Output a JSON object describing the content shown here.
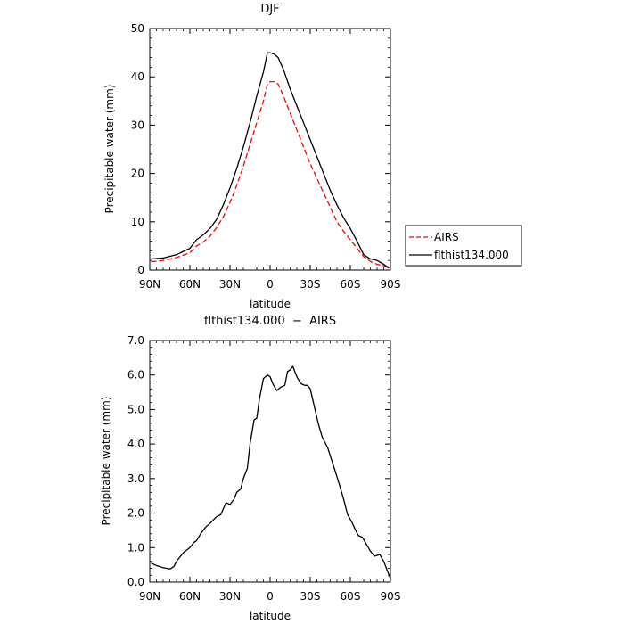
{
  "chart_data": [
    {
      "type": "line",
      "title": "DJF",
      "xlabel": "latitude",
      "ylabel": "Precipitable water (mm)",
      "xlim": [
        90,
        -90
      ],
      "ylim": [
        0,
        50
      ],
      "xticks": [
        {
          "value": 90,
          "label": "90N"
        },
        {
          "value": 60,
          "label": "60N"
        },
        {
          "value": 30,
          "label": "30N"
        },
        {
          "value": 0,
          "label": "0"
        },
        {
          "value": -30,
          "label": "30S"
        },
        {
          "value": -60,
          "label": "60S"
        },
        {
          "value": -90,
          "label": "90S"
        }
      ],
      "yticks": [
        {
          "value": 0,
          "label": "0"
        },
        {
          "value": 10,
          "label": "10"
        },
        {
          "value": 20,
          "label": "20"
        },
        {
          "value": 30,
          "label": "30"
        },
        {
          "value": 40,
          "label": "40"
        },
        {
          "value": 50,
          "label": "50"
        }
      ],
      "legend_position": "right",
      "series": [
        {
          "name": "AIRS",
          "color": "#ff0000",
          "dash": "dashed",
          "x": [
            89,
            80,
            70,
            60,
            55,
            50,
            45,
            40,
            35,
            30,
            25,
            20,
            15,
            10,
            5,
            2,
            0,
            -3,
            -6,
            -10,
            -15,
            -20,
            -25,
            -30,
            -35,
            -40,
            -45,
            -50,
            -55,
            -60,
            -65,
            -70,
            -75,
            -80,
            -85,
            -89
          ],
          "y": [
            1.7,
            2.0,
            2.6,
            3.6,
            5.0,
            5.8,
            7.0,
            8.8,
            11.0,
            14.0,
            17.5,
            21.5,
            26.0,
            30.5,
            35.0,
            38.5,
            39.0,
            39.0,
            38.5,
            36.0,
            32.5,
            29.0,
            25.5,
            22.0,
            19.0,
            16.0,
            13.0,
            10.0,
            8.0,
            6.3,
            4.5,
            2.8,
            1.8,
            1.2,
            0.9,
            0.4
          ]
        },
        {
          "name": "flthist134.000",
          "color": "#000000",
          "dash": "solid",
          "x": [
            89,
            80,
            70,
            60,
            55,
            50,
            45,
            40,
            35,
            30,
            25,
            20,
            15,
            10,
            5,
            2,
            0,
            -3,
            -6,
            -10,
            -15,
            -20,
            -25,
            -30,
            -35,
            -40,
            -45,
            -50,
            -55,
            -60,
            -65,
            -70,
            -75,
            -80,
            -85,
            -89
          ],
          "y": [
            2.3,
            2.5,
            3.2,
            4.5,
            6.3,
            7.3,
            8.6,
            10.5,
            13.5,
            17.0,
            21.0,
            25.5,
            30.5,
            36.0,
            41.0,
            45.0,
            45.0,
            44.7,
            44.0,
            41.5,
            37.5,
            34.0,
            30.5,
            27.0,
            23.5,
            20.0,
            16.5,
            13.5,
            10.8,
            8.6,
            6.0,
            3.2,
            2.3,
            2.0,
            1.2,
            0.4
          ]
        }
      ]
    },
    {
      "type": "line",
      "title": "flthist134.000  −  AIRS",
      "xlabel": "latitude",
      "ylabel": "Precipitable water (mm)",
      "xlim": [
        90,
        -90
      ],
      "ylim": [
        0,
        7
      ],
      "xticks": [
        {
          "value": 90,
          "label": "90N"
        },
        {
          "value": 60,
          "label": "60N"
        },
        {
          "value": 30,
          "label": "30N"
        },
        {
          "value": 0,
          "label": "0"
        },
        {
          "value": -30,
          "label": "30S"
        },
        {
          "value": -60,
          "label": "60S"
        },
        {
          "value": -90,
          "label": "90S"
        }
      ],
      "yticks": [
        {
          "value": 0,
          "label": "0.0"
        },
        {
          "value": 1,
          "label": "1.0"
        },
        {
          "value": 2,
          "label": "2.0"
        },
        {
          "value": 3,
          "label": "3.0"
        },
        {
          "value": 4,
          "label": "4.0"
        },
        {
          "value": 5,
          "label": "5.0"
        },
        {
          "value": 6,
          "label": "6.0"
        },
        {
          "value": 7,
          "label": "7.0"
        }
      ],
      "series": [
        {
          "name": "",
          "color": "#000000",
          "dash": "solid",
          "x": [
            89,
            85,
            80,
            75,
            72,
            70,
            65,
            60,
            57,
            55,
            52,
            48,
            45,
            40,
            37,
            33,
            30,
            27,
            25,
            22,
            20,
            17,
            15,
            12,
            10,
            8,
            5,
            2,
            0,
            -2,
            -5,
            -8,
            -11,
            -13,
            -15,
            -17,
            -20,
            -23,
            -26,
            -28,
            -30,
            -33,
            -36,
            -39,
            -43,
            -48,
            -52,
            -55,
            -58,
            -61,
            -64,
            -66,
            -69,
            -72,
            -75,
            -78,
            -82,
            -85,
            -88,
            -90
          ],
          "y": [
            0.55,
            0.48,
            0.42,
            0.38,
            0.45,
            0.6,
            0.85,
            1.0,
            1.15,
            1.2,
            1.4,
            1.6,
            1.7,
            1.9,
            1.95,
            2.3,
            2.25,
            2.4,
            2.6,
            2.7,
            3.0,
            3.3,
            4.0,
            4.7,
            4.75,
            5.3,
            5.9,
            6.0,
            5.95,
            5.75,
            5.55,
            5.65,
            5.7,
            6.1,
            6.15,
            6.25,
            5.95,
            5.75,
            5.7,
            5.7,
            5.6,
            5.1,
            4.6,
            4.2,
            3.9,
            3.3,
            2.8,
            2.4,
            1.95,
            1.75,
            1.5,
            1.35,
            1.3,
            1.1,
            0.9,
            0.75,
            0.8,
            0.6,
            0.3,
            0.1
          ]
        }
      ]
    }
  ]
}
